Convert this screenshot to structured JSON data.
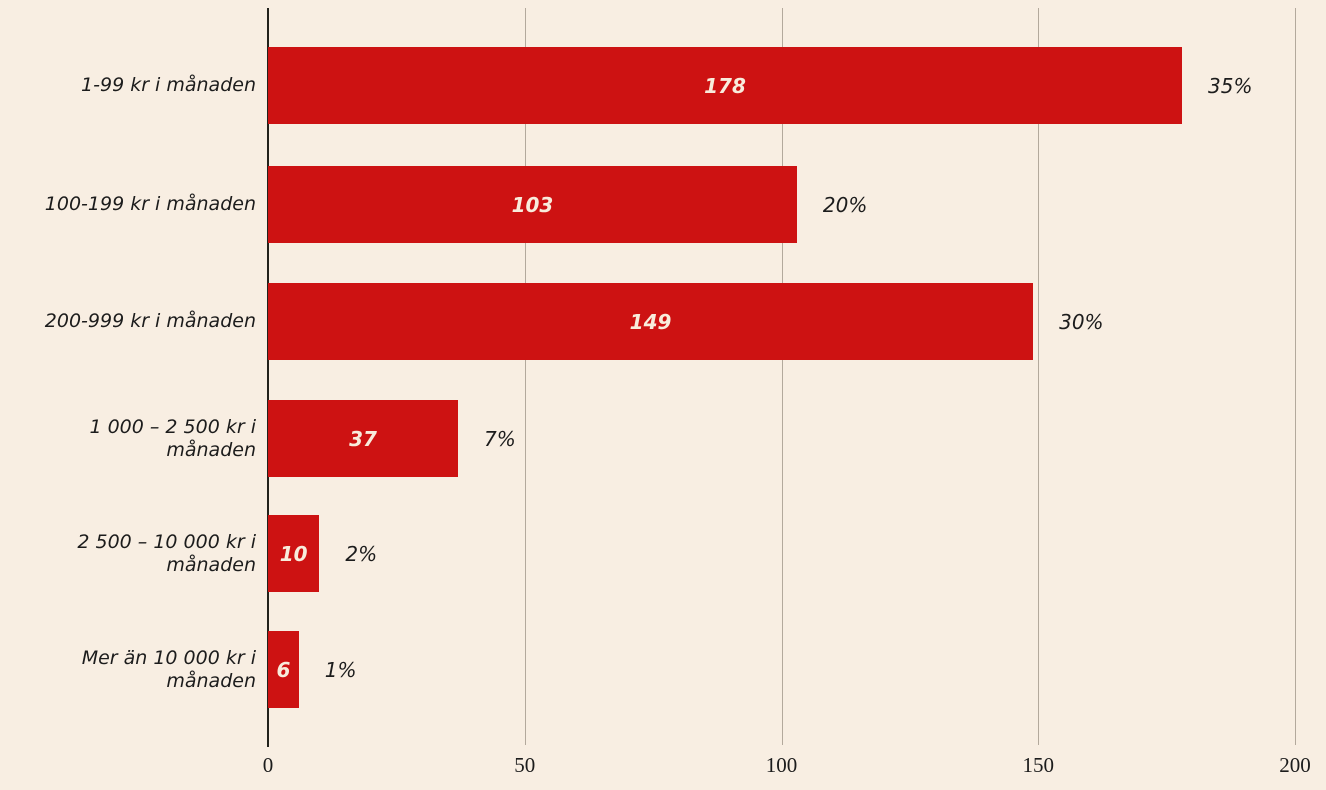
{
  "chart_data": {
    "type": "bar",
    "orientation": "horizontal",
    "title": "",
    "xlabel": "",
    "ylabel": "",
    "categories": [
      "1-99 kr i månaden",
      "100-199 kr i månaden",
      "200-999 kr i månaden",
      "1 000 – 2 500 kr i månaden",
      "2 500 – 10 000 kr i månaden",
      "Mer än 10 000 kr i månaden"
    ],
    "values": [
      178,
      103,
      149,
      37,
      10,
      6
    ],
    "value_labels": [
      "178",
      "103",
      "149",
      "37",
      "10",
      "6"
    ],
    "percent_labels": [
      "35%",
      "20%",
      "30%",
      "7%",
      "2%",
      "1%"
    ],
    "xlim": [
      0,
      200
    ],
    "x_ticks": [
      "0",
      "50",
      "100",
      "150",
      "200"
    ],
    "grid": true,
    "legend": false,
    "colors": {
      "bar": "#cd1212",
      "background": "#f8eee2",
      "value_text": "#f8ecdc",
      "label_text": "#1c1c1c",
      "gridline": "#b3a99c",
      "axis": "#22221c"
    }
  }
}
